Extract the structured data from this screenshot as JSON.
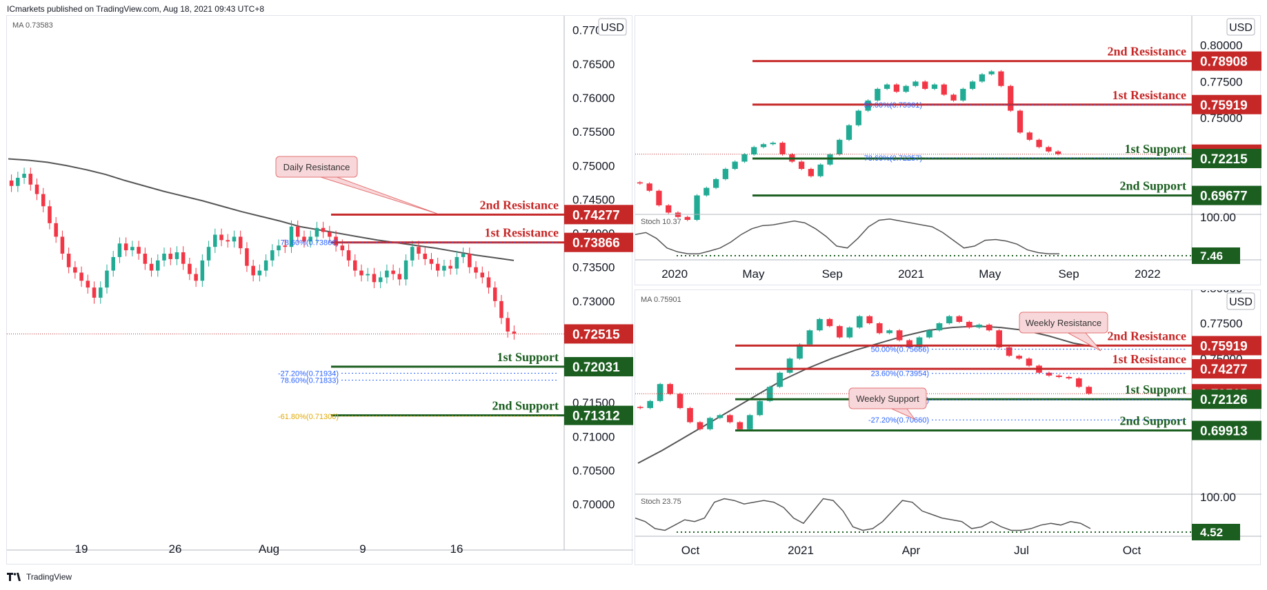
{
  "header": {
    "title": "ICmarkets published on TradingView.com, Aug 18, 2021 09:43 UTC+8"
  },
  "footer": {
    "brand": "TradingView"
  },
  "colors": {
    "up": "#22ab94",
    "down": "#f23645",
    "resistance": "#c62828",
    "support": "#1b5e20",
    "ma": "#555555",
    "fib_blue": "#2962ff",
    "fib_orange": "#e0a800",
    "price_line": "#c62828",
    "callout_fill": "#f8d7da",
    "callout_stroke": "#e57373"
  },
  "chart_data": [
    {
      "id": "left",
      "type": "candlestick",
      "currency": "USD",
      "indicator_label": "MA 0.73583",
      "y_ticks": [
        "0.77000",
        "0.76500",
        "0.76000",
        "0.75500",
        "0.75000",
        "0.74500",
        "0.74000",
        "0.73500",
        "0.73000",
        "0.72500",
        "0.72000",
        "0.71500",
        "0.71000",
        "0.70500",
        "0.70000"
      ],
      "x_ticks": [
        "19",
        "26",
        "Aug",
        "9",
        "16"
      ],
      "ylim": [
        0.6965,
        0.7715
      ],
      "close_series": [
        0.747,
        0.7482,
        0.7488,
        0.7472,
        0.7458,
        0.744,
        0.7415,
        0.7395,
        0.737,
        0.735,
        0.7342,
        0.733,
        0.732,
        0.7305,
        0.732,
        0.7345,
        0.7365,
        0.7385,
        0.7375,
        0.738,
        0.737,
        0.7355,
        0.7345,
        0.736,
        0.737,
        0.7362,
        0.7372,
        0.7355,
        0.734,
        0.733,
        0.736,
        0.738,
        0.7398,
        0.739,
        0.7388,
        0.7395,
        0.7378,
        0.7352,
        0.7338,
        0.7345,
        0.736,
        0.7375,
        0.7382,
        0.738,
        0.741,
        0.7395,
        0.7388,
        0.7395,
        0.7408,
        0.7402,
        0.7395,
        0.7382,
        0.7375,
        0.736,
        0.7345,
        0.7338,
        0.734,
        0.7328,
        0.7335,
        0.7345,
        0.734,
        0.7332,
        0.736,
        0.738,
        0.737,
        0.7362,
        0.7355,
        0.7345,
        0.7352,
        0.7348,
        0.7365,
        0.737,
        0.735,
        0.7342,
        0.7335,
        0.732,
        0.73,
        0.7275,
        0.7255,
        0.7252
      ],
      "ma_series": [
        0.751,
        0.7508,
        0.7505,
        0.75,
        0.7494,
        0.7487,
        0.7478,
        0.747,
        0.7462,
        0.7455,
        0.7448,
        0.744,
        0.7432,
        0.7425,
        0.7418,
        0.741,
        0.7405,
        0.74,
        0.7395,
        0.739,
        0.7386,
        0.7382,
        0.7378,
        0.7373,
        0.7368,
        0.7364,
        0.736
      ],
      "current_price": 0.72515,
      "levels": [
        {
          "label": "2nd Resistance",
          "value": "0.74277",
          "kind": "resistance",
          "price": 0.74277
        },
        {
          "label": "1st Resistance",
          "value": "0.73866",
          "kind": "resistance",
          "price": 0.73866
        },
        {
          "label": "",
          "value": "0.72515",
          "kind": "price",
          "price": 0.72515
        },
        {
          "label": "1st Support",
          "value": "0.72031",
          "kind": "support",
          "price": 0.72031
        },
        {
          "label": "2nd Support",
          "value": "0.71312",
          "kind": "support",
          "price": 0.71312
        }
      ],
      "fib_labels": [
        {
          "text": "78.60%(0.73866)",
          "price": 0.73866,
          "color": "blue"
        },
        {
          "text": "-27.20%(0.71934)",
          "price": 0.71934,
          "color": "blue"
        },
        {
          "text": "78.60%(0.71833)",
          "price": 0.71833,
          "color": "blue"
        },
        {
          "text": "-61.80%(0.71300)",
          "price": 0.713,
          "color": "orange"
        }
      ],
      "annotations": [
        {
          "text": "Daily Resistance"
        }
      ]
    },
    {
      "id": "top-right",
      "type": "candlestick",
      "currency": "USD",
      "y_ticks": [
        "0.80000",
        "0.77500",
        "0.75000",
        "0.72500",
        "0.70000"
      ],
      "x_ticks": [
        "2020",
        "May",
        "Sep",
        "2021",
        "May",
        "Sep",
        "2022"
      ],
      "ylim": [
        0.68,
        0.805
      ],
      "close_series": [
        0.705,
        0.7,
        0.69,
        0.685,
        0.682,
        0.68,
        0.6968,
        0.702,
        0.708,
        0.715,
        0.72,
        0.725,
        0.73,
        0.732,
        0.733,
        0.725,
        0.72,
        0.715,
        0.71,
        0.718,
        0.725,
        0.735,
        0.745,
        0.755,
        0.762,
        0.77,
        0.773,
        0.768,
        0.772,
        0.775,
        0.77,
        0.773,
        0.766,
        0.762,
        0.77,
        0.775,
        0.78,
        0.782,
        0.772,
        0.755,
        0.74,
        0.735,
        0.73,
        0.727,
        0.7252
      ],
      "current_price": 0.72515,
      "levels": [
        {
          "label": "2nd Resistance",
          "value": "0.78908",
          "kind": "resistance",
          "price": 0.78908
        },
        {
          "label": "1st Resistance",
          "value": "0.75919",
          "kind": "resistance",
          "price": 0.75919
        },
        {
          "label": "",
          "value": "0.72515",
          "kind": "price",
          "price": 0.72515
        },
        {
          "label": "1st Support",
          "value": "0.72215",
          "kind": "support",
          "price": 0.72215
        },
        {
          "label": "2nd Support",
          "value": "0.69677",
          "kind": "support",
          "price": 0.69677
        }
      ],
      "fib_labels": [
        {
          "text": "50.00%(0.75901)",
          "price": 0.75901,
          "color": "blue"
        },
        {
          "text": "78.60%(0.72257)",
          "price": 0.72257,
          "color": "blue"
        }
      ],
      "stoch": {
        "label": "Stoch 10.37",
        "y_tick": "100.00",
        "value_badge": "7.46",
        "series": [
          55,
          60,
          45,
          20,
          10,
          5,
          5,
          12,
          20,
          35,
          55,
          70,
          78,
          80,
          85,
          90,
          85,
          70,
          50,
          25,
          20,
          45,
          75,
          92,
          95,
          90,
          85,
          80,
          75,
          60,
          40,
          20,
          25,
          40,
          42,
          38,
          30,
          15,
          8,
          5,
          5
        ]
      }
    },
    {
      "id": "bottom-right",
      "type": "candlestick",
      "currency": "USD",
      "indicator_label": "MA 0.75901",
      "y_ticks": [
        "0.80000",
        "0.77500",
        "0.75000",
        "0.72500",
        "0.70000"
      ],
      "x_ticks": [
        "Oct",
        "2021",
        "Apr",
        "Jul",
        "Oct"
      ],
      "ylim": [
        0.6755,
        0.7955
      ],
      "close_series": [
        0.715,
        0.72,
        0.732,
        0.725,
        0.715,
        0.705,
        0.7,
        0.708,
        0.71,
        0.705,
        0.7,
        0.71,
        0.72,
        0.73,
        0.74,
        0.75,
        0.76,
        0.77,
        0.778,
        0.773,
        0.765,
        0.772,
        0.78,
        0.775,
        0.768,
        0.77,
        0.763,
        0.758,
        0.765,
        0.77,
        0.775,
        0.78,
        0.776,
        0.772,
        0.774,
        0.77,
        0.758,
        0.752,
        0.75,
        0.745,
        0.74,
        0.738,
        0.737,
        0.736,
        0.73,
        0.7252
      ],
      "ma_series": [
        0.676,
        0.685,
        0.695,
        0.705,
        0.715,
        0.725,
        0.735,
        0.743,
        0.75,
        0.756,
        0.761,
        0.766,
        0.77,
        0.772,
        0.773,
        0.772,
        0.77,
        0.766,
        0.761,
        0.758
      ],
      "current_price": 0.72515,
      "levels": [
        {
          "label": "2nd Resistance",
          "value": "0.75919",
          "kind": "resistance",
          "price": 0.75919
        },
        {
          "label": "1st Resistance",
          "value": "0.74277",
          "kind": "resistance",
          "price": 0.74277
        },
        {
          "label": "",
          "value": "0.72515",
          "kind": "price",
          "price": 0.72515
        },
        {
          "label": "1st Support",
          "value": "0.72126",
          "kind": "support",
          "price": 0.72126
        },
        {
          "label": "2nd Support",
          "value": "0.69913",
          "kind": "support",
          "price": 0.69913
        }
      ],
      "fib_labels": [
        {
          "text": "50.00%(0.75666)",
          "price": 0.75666,
          "color": "blue"
        },
        {
          "text": "23.60%(0.73954)",
          "price": 0.73954,
          "color": "blue"
        },
        {
          "text": "78.60%(0.72087)",
          "price": 0.72087,
          "color": "blue"
        },
        {
          "text": "-27.20%(0.70660)",
          "price": 0.7066,
          "color": "blue"
        }
      ],
      "annotations": [
        {
          "text": "Weekly Resistance"
        },
        {
          "text": "Weekly Support"
        }
      ],
      "stoch": {
        "label": "Stoch 23.75",
        "y_tick": "100.00",
        "value_badge": "4.52",
        "series": [
          40,
          30,
          10,
          5,
          20,
          35,
          30,
          40,
          85,
          95,
          90,
          80,
          85,
          90,
          85,
          70,
          40,
          25,
          60,
          95,
          90,
          60,
          15,
          5,
          10,
          30,
          60,
          90,
          85,
          60,
          50,
          40,
          35,
          30,
          10,
          15,
          30,
          15,
          5,
          5,
          10,
          20,
          25,
          20,
          30,
          25,
          10
        ]
      }
    }
  ]
}
